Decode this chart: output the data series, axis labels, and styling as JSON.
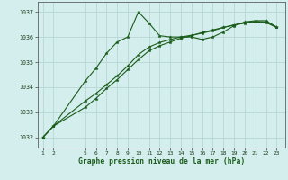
{
  "title": "Graphe pression niveau de la mer (hPa)",
  "background_color": "#d4eeed",
  "grid_color": "#b8d8d5",
  "line_color": "#1a5c1a",
  "x_ticks": [
    1,
    2,
    5,
    6,
    7,
    8,
    9,
    10,
    11,
    12,
    13,
    14,
    15,
    16,
    17,
    18,
    19,
    20,
    21,
    22,
    23
  ],
  "x_tick_labels": [
    "1",
    "2",
    "5",
    "6",
    "7",
    "8",
    "9",
    "10",
    "11",
    "12",
    "13",
    "14",
    "15",
    "16",
    "17",
    "18",
    "19",
    "20",
    "21",
    "22",
    "23"
  ],
  "xlim": [
    0.5,
    23.8
  ],
  "ylim": [
    1031.6,
    1037.4
  ],
  "yticks": [
    1032,
    1033,
    1034,
    1035,
    1036,
    1037
  ],
  "series1_x": [
    1,
    2,
    5,
    6,
    7,
    8,
    9,
    10,
    11,
    12,
    13,
    14,
    15,
    16,
    17,
    18,
    19,
    20,
    21,
    22,
    23
  ],
  "series1_y": [
    1032.0,
    1032.45,
    1034.25,
    1034.75,
    1035.35,
    1035.8,
    1036.0,
    1037.0,
    1036.55,
    1036.05,
    1036.0,
    1036.0,
    1036.0,
    1035.9,
    1036.0,
    1036.2,
    1036.45,
    1036.6,
    1036.65,
    1036.65,
    1036.4
  ],
  "series2_x": [
    1,
    2,
    5,
    6,
    7,
    8,
    9,
    10,
    11,
    12,
    13,
    14,
    15,
    16,
    17,
    18,
    19,
    20,
    21,
    22,
    23
  ],
  "series2_y": [
    1032.0,
    1032.45,
    1033.2,
    1033.55,
    1033.95,
    1034.3,
    1034.7,
    1035.1,
    1035.45,
    1035.65,
    1035.8,
    1035.95,
    1036.05,
    1036.18,
    1036.28,
    1036.38,
    1036.48,
    1036.55,
    1036.6,
    1036.58,
    1036.38
  ],
  "series3_x": [
    1,
    2,
    5,
    6,
    7,
    8,
    9,
    10,
    11,
    12,
    13,
    14,
    15,
    16,
    17,
    18,
    19,
    20,
    21,
    22,
    23
  ],
  "series3_y": [
    1032.0,
    1032.45,
    1033.45,
    1033.75,
    1034.1,
    1034.45,
    1034.85,
    1035.3,
    1035.6,
    1035.78,
    1035.9,
    1036.0,
    1036.07,
    1036.15,
    1036.25,
    1036.38,
    1036.48,
    1036.57,
    1036.62,
    1036.6,
    1036.38
  ]
}
